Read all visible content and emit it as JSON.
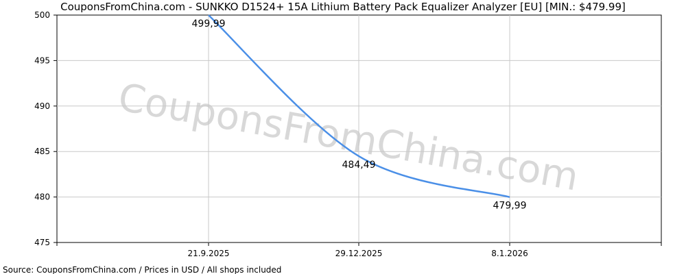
{
  "chart_data": {
    "type": "line",
    "title": "CouponsFromChina.com - SUNKKO D1524+ 15A Lithium Battery Pack Equalizer Analyzer [EU] [MIN.: $479.99]",
    "footer": "Source: CouponsFromChina.com / Prices in USD / All shops included",
    "watermark": "CouponsFromChina.com",
    "xlabel": "",
    "ylabel": "",
    "x_ticks": [
      "21.9.2025",
      "29.12.2025",
      "8.1.2026"
    ],
    "ylim": [
      475,
      500
    ],
    "y_ticks": [
      475,
      480,
      485,
      490,
      495,
      500
    ],
    "grid": true,
    "line_color": "#4a8fe7",
    "series": [
      {
        "points": [
          {
            "x": "21.9.2025",
            "y": 499.99,
            "label": "499,99"
          },
          {
            "x": "29.12.2025",
            "y": 484.49,
            "label": "484,49"
          },
          {
            "x": "8.1.2026",
            "y": 479.99,
            "label": "479,99"
          }
        ]
      }
    ]
  }
}
